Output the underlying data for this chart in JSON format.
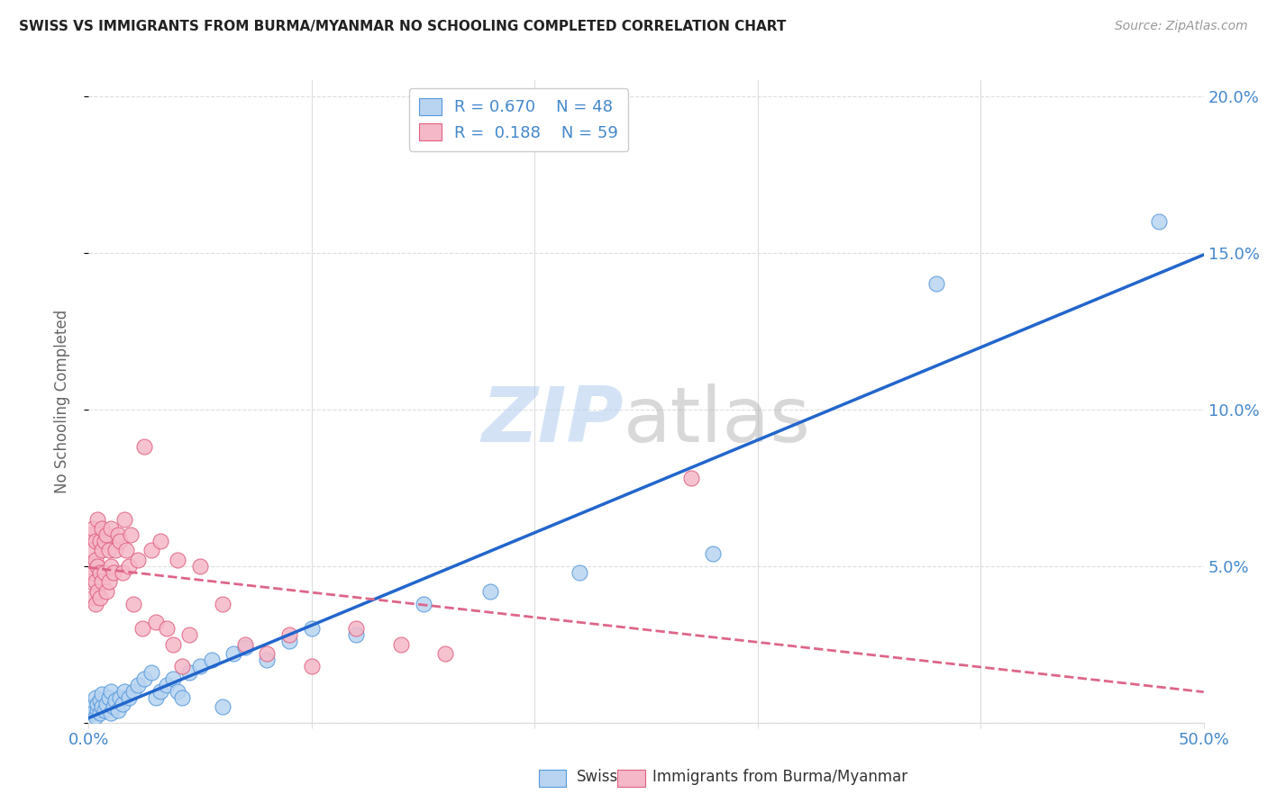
{
  "title": "SWISS VS IMMIGRANTS FROM BURMA/MYANMAR NO SCHOOLING COMPLETED CORRELATION CHART",
  "source_text": "Source: ZipAtlas.com",
  "ylabel": "No Schooling Completed",
  "xmin": 0.0,
  "xmax": 0.5,
  "ymin": 0.0,
  "ymax": 0.205,
  "yticks": [
    0.0,
    0.05,
    0.1,
    0.15,
    0.2
  ],
  "ytick_labels": [
    "",
    "5.0%",
    "10.0%",
    "15.0%",
    "20.0%"
  ],
  "watermark_zip": "ZIP",
  "watermark_atlas": "atlas",
  "legend_swiss_r": "0.670",
  "legend_swiss_n": "48",
  "legend_burma_r": "0.188",
  "legend_burma_n": "59",
  "swiss_face_color": "#b8d4f0",
  "swiss_edge_color": "#5599dd",
  "burma_face_color": "#f5b8c8",
  "burma_edge_color": "#e06080",
  "swiss_line_color": "#2266cc",
  "burma_line_color": "#dd6688",
  "title_color": "#222222",
  "axis_label_color": "#4488cc",
  "grid_color": "#dddddd",
  "background_color": "#ffffff",
  "swiss_x": [
    0.001,
    0.002,
    0.003,
    0.003,
    0.004,
    0.004,
    0.005,
    0.005,
    0.006,
    0.006,
    0.007,
    0.008,
    0.009,
    0.01,
    0.01,
    0.011,
    0.012,
    0.013,
    0.014,
    0.015,
    0.016,
    0.018,
    0.02,
    0.022,
    0.025,
    0.028,
    0.03,
    0.032,
    0.035,
    0.038,
    0.04,
    0.042,
    0.045,
    0.05,
    0.055,
    0.06,
    0.065,
    0.07,
    0.08,
    0.09,
    0.1,
    0.12,
    0.15,
    0.18,
    0.22,
    0.28,
    0.38,
    0.48
  ],
  "swiss_y": [
    0.005,
    0.003,
    0.002,
    0.008,
    0.004,
    0.006,
    0.003,
    0.007,
    0.005,
    0.009,
    0.004,
    0.006,
    0.008,
    0.003,
    0.01,
    0.005,
    0.007,
    0.004,
    0.008,
    0.006,
    0.01,
    0.008,
    0.01,
    0.012,
    0.014,
    0.016,
    0.008,
    0.01,
    0.012,
    0.014,
    0.01,
    0.008,
    0.016,
    0.018,
    0.02,
    0.005,
    0.022,
    0.024,
    0.02,
    0.026,
    0.03,
    0.028,
    0.038,
    0.042,
    0.048,
    0.054,
    0.14,
    0.16
  ],
  "burma_x": [
    0.001,
    0.001,
    0.001,
    0.002,
    0.002,
    0.002,
    0.002,
    0.003,
    0.003,
    0.003,
    0.003,
    0.004,
    0.004,
    0.004,
    0.005,
    0.005,
    0.005,
    0.006,
    0.006,
    0.006,
    0.007,
    0.007,
    0.008,
    0.008,
    0.009,
    0.009,
    0.01,
    0.01,
    0.011,
    0.012,
    0.013,
    0.014,
    0.015,
    0.016,
    0.017,
    0.018,
    0.019,
    0.02,
    0.022,
    0.024,
    0.025,
    0.028,
    0.03,
    0.032,
    0.035,
    0.038,
    0.04,
    0.042,
    0.045,
    0.05,
    0.06,
    0.07,
    0.08,
    0.09,
    0.1,
    0.12,
    0.14,
    0.16,
    0.27
  ],
  "burma_y": [
    0.045,
    0.05,
    0.06,
    0.04,
    0.048,
    0.055,
    0.062,
    0.038,
    0.045,
    0.052,
    0.058,
    0.042,
    0.05,
    0.065,
    0.04,
    0.048,
    0.058,
    0.045,
    0.055,
    0.062,
    0.048,
    0.058,
    0.042,
    0.06,
    0.045,
    0.055,
    0.05,
    0.062,
    0.048,
    0.055,
    0.06,
    0.058,
    0.048,
    0.065,
    0.055,
    0.05,
    0.06,
    0.038,
    0.052,
    0.03,
    0.088,
    0.055,
    0.032,
    0.058,
    0.03,
    0.025,
    0.052,
    0.018,
    0.028,
    0.05,
    0.038,
    0.025,
    0.022,
    0.028,
    0.018,
    0.03,
    0.025,
    0.022,
    0.078
  ]
}
